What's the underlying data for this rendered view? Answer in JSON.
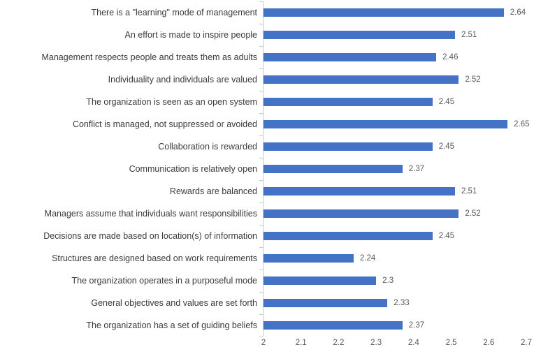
{
  "chart_data": {
    "type": "bar",
    "orientation": "horizontal",
    "title": "",
    "categories": [
      "There is a \"learning\" mode of management",
      "An effort is made to inspire people",
      "Management respects people and treats them as adults",
      "Individuality and individuals are valued",
      "The organization is seen  as an open system",
      "Conflict is managed, not suppressed or avoided",
      "Collaboration is rewarded",
      "Communication is relatively open",
      "Rewards are balanced",
      "Managers assume that individuals want responsibilities",
      "Decisions are made based on location(s) of information",
      "Structures are designed based on work requirements",
      "The organization operates in a purposeful mode",
      "General objectives and values are set forth",
      "The organization has a set of guiding beliefs"
    ],
    "values": [
      2.64,
      2.51,
      2.46,
      2.52,
      2.45,
      2.65,
      2.45,
      2.37,
      2.51,
      2.52,
      2.45,
      2.24,
      2.3,
      2.33,
      2.37
    ],
    "value_labels": [
      "2.64",
      "2.51",
      "2.46",
      "2.52",
      "2.45",
      "2.65",
      "2.45",
      "2.37",
      "2.51",
      "2.52",
      "2.45",
      "2.24",
      "2.3",
      "2.33",
      "2.37"
    ],
    "x_ticks": [
      "2",
      "2.1",
      "2.2",
      "2.3",
      "2.4",
      "2.5",
      "2.6",
      "2.7"
    ],
    "xlim": [
      2,
      2.7
    ],
    "grid": "off",
    "legend": "none",
    "colors": {
      "bar": "#4472C4",
      "axis": "#C9C9C9",
      "category_text": "#3B3B3B",
      "value_text": "#595959"
    }
  }
}
